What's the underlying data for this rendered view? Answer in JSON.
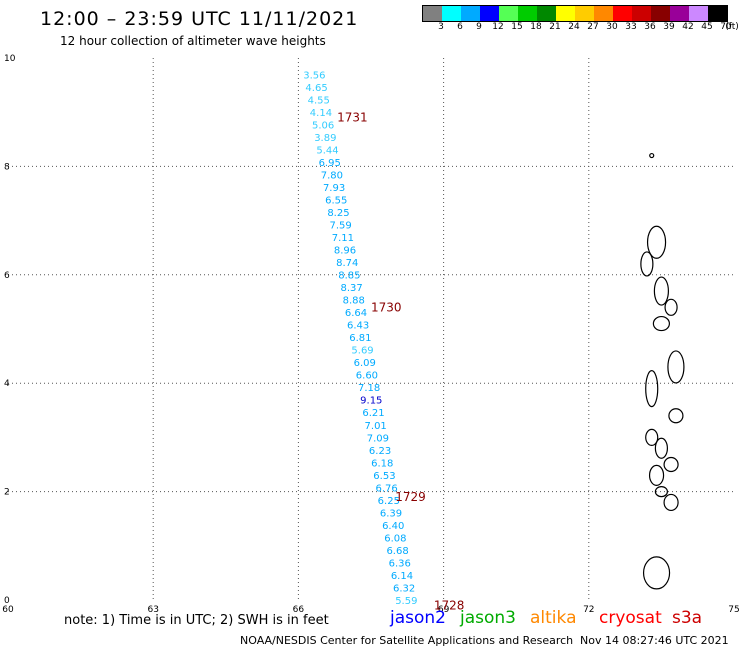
{
  "header": {
    "title": "12:00 – 23:59 UTC 11/11/2021",
    "subtitle": "12 hour collection of altimeter wave heights"
  },
  "legend": {
    "unit_label": "(ft)",
    "bins": [
      {
        "label": "3",
        "color": "#808080"
      },
      {
        "label": "6",
        "color": "#00ffff"
      },
      {
        "label": "9",
        "color": "#00aaff"
      },
      {
        "label": "12",
        "color": "#0000ff"
      },
      {
        "label": "15",
        "color": "#55ff55"
      },
      {
        "label": "18",
        "color": "#00cc00"
      },
      {
        "label": "21",
        "color": "#008800"
      },
      {
        "label": "24",
        "color": "#ffff00"
      },
      {
        "label": "27",
        "color": "#ffcc00"
      },
      {
        "label": "30",
        "color": "#ff8800"
      },
      {
        "label": "33",
        "color": "#ff0000"
      },
      {
        "label": "36",
        "color": "#cc0000"
      },
      {
        "label": "39",
        "color": "#880000"
      },
      {
        "label": "42",
        "color": "#990099"
      },
      {
        "label": "45",
        "color": "#cc88ff"
      },
      {
        "label": "70",
        "color": "#000000"
      }
    ]
  },
  "axes": {
    "lon_ticks": [
      "60",
      "63",
      "66",
      "69",
      "72",
      "75"
    ],
    "lat_ticks": [
      "0",
      "2",
      "4",
      "6",
      "8",
      "10"
    ],
    "lon_range": [
      60,
      75
    ],
    "lat_range": [
      0,
      10
    ]
  },
  "track": {
    "values": [
      "3.56",
      "4.65",
      "4.55",
      "4.14",
      "5.06",
      "3.89",
      "5.44",
      "6.95",
      "7.80",
      "7.93",
      "6.55",
      "8.25",
      "7.59",
      "7.11",
      "8.96",
      "8.74",
      "8.85",
      "8.37",
      "8.88",
      "6.64",
      "6.43",
      "6.81",
      "5.69",
      "6.09",
      "6.60",
      "7.18",
      "9.15",
      "6.21",
      "7.01",
      "7.09",
      "6.23",
      "6.18",
      "6.53",
      "6.76",
      "6.25",
      "6.39",
      "6.40",
      "6.08",
      "6.68",
      "6.36",
      "6.14",
      "6.32",
      "5.59"
    ],
    "lat_start": 9.7,
    "lat_end": 0.0,
    "lon_start": 66.1,
    "lon_end": 68.0,
    "value_color": "#00aaff",
    "light_color": "#33ccff",
    "time_labels": [
      {
        "text": "1731",
        "lat": 8.9,
        "lon": 66.8
      },
      {
        "text": "1730",
        "lat": 5.4,
        "lon": 67.5
      },
      {
        "text": "1729",
        "lat": 1.9,
        "lon": 68.0
      },
      {
        "text": "1728",
        "lat": -0.1,
        "lon": 68.8
      }
    ],
    "time_color": "#880000"
  },
  "footer": {
    "note": "note: 1) Time is in UTC; 2) SWH is in feet",
    "satellites": [
      {
        "name": "jason2",
        "color": "#0000ff"
      },
      {
        "name": "jason3",
        "color": "#00aa00"
      },
      {
        "name": "altika",
        "color": "#ff8800"
      },
      {
        "name": "cryosat",
        "color": "#ff0000"
      },
      {
        "name": "s3a",
        "color": "#cc0000"
      }
    ],
    "credit": "NOAA/NESDIS Center for Satellite Applications and Research",
    "timestamp": "Nov 14 08:27:46 UTC 2021"
  }
}
